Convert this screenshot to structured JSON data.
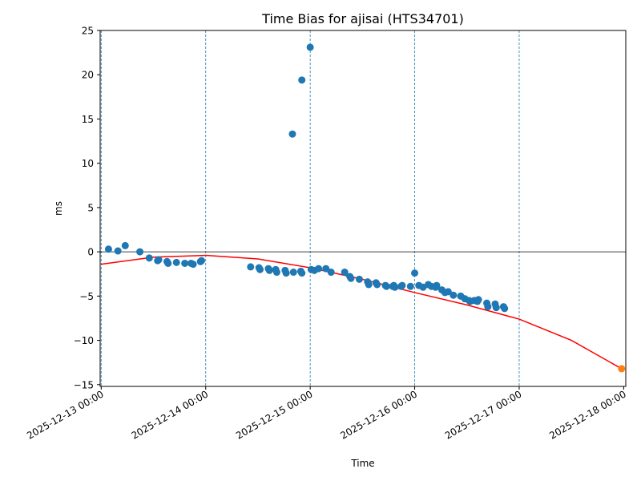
{
  "chart_data": {
    "type": "scatter",
    "title": "Time Bias for ajisai (HTS34701)",
    "xlabel": "Time",
    "ylabel": "ms",
    "xlim": [
      -0.01,
      5.02
    ],
    "ylim": [
      -15.2,
      25
    ],
    "y_ticks": [
      -15,
      -10,
      -5,
      0,
      5,
      10,
      15,
      20,
      25
    ],
    "y_tick_labels": [
      "−15",
      "−10",
      "−5",
      "0",
      "5",
      "10",
      "15",
      "20",
      "25"
    ],
    "x_ticks": [
      0,
      1,
      2,
      3,
      4,
      5
    ],
    "x_tick_labels": [
      "2025-12-13 00:00",
      "2025-12-14 00:00",
      "2025-12-15 00:00",
      "2025-12-16 00:00",
      "2025-12-17 00:00",
      "2025-12-18 00:00"
    ],
    "x_unit": "days since 2025-12-13 00:00",
    "vertical_gridlines_at": [
      0,
      1,
      2,
      3,
      4
    ],
    "horizontal_reference_line": 0,
    "colors": {
      "points": "#1f77b4",
      "fit": "#ff0000",
      "prediction": "#ff7f0e",
      "grid": "#1f77b4",
      "zero_line": "#000000"
    },
    "series": [
      {
        "name": "measurements",
        "kind": "scatter",
        "color": "#1f77b4",
        "x": [
          0.07,
          0.16,
          0.23,
          0.37,
          0.46,
          0.54,
          0.55,
          0.63,
          0.64,
          0.72,
          0.8,
          0.86,
          0.88,
          0.95,
          0.96,
          1.43,
          1.51,
          1.52,
          1.6,
          1.61,
          1.67,
          1.68,
          1.76,
          1.77,
          1.84,
          1.91,
          1.92,
          1.83,
          1.92,
          2.0,
          2.01,
          2.04,
          2.08,
          2.15,
          2.2,
          2.33,
          2.38,
          2.39,
          2.47,
          2.55,
          2.56,
          2.63,
          2.64,
          2.72,
          2.73,
          2.79,
          2.8,
          2.81,
          2.87,
          2.88,
          2.96,
          3.0,
          3.04,
          3.08,
          3.13,
          3.16,
          3.2,
          3.21,
          3.26,
          3.29,
          3.32,
          3.37,
          3.44,
          3.48,
          3.52,
          3.53,
          3.57,
          3.6,
          3.61,
          3.69,
          3.7,
          3.77,
          3.78,
          3.85,
          3.86
        ],
        "y": [
          0.3,
          0.1,
          0.7,
          0.0,
          -0.7,
          -1.0,
          -0.9,
          -1.1,
          -1.3,
          -1.2,
          -1.3,
          -1.3,
          -1.4,
          -1.1,
          -1.0,
          -1.7,
          -1.8,
          -2.0,
          -1.9,
          -2.1,
          -2.0,
          -2.3,
          -2.1,
          -2.4,
          -2.3,
          -2.2,
          -2.4,
          13.3,
          19.4,
          23.1,
          -2.0,
          -2.1,
          -1.9,
          -1.9,
          -2.3,
          -2.3,
          -2.8,
          -3.0,
          -3.1,
          -3.4,
          -3.7,
          -3.5,
          -3.7,
          -3.8,
          -3.9,
          -3.9,
          -3.8,
          -4.0,
          -3.9,
          -3.8,
          -3.9,
          -2.4,
          -3.8,
          -4.0,
          -3.7,
          -3.9,
          -4.0,
          -3.8,
          -4.3,
          -4.6,
          -4.5,
          -4.9,
          -5.0,
          -5.3,
          -5.5,
          -5.6,
          -5.5,
          -5.6,
          -5.4,
          -5.8,
          -6.2,
          -5.9,
          -6.3,
          -6.2,
          -6.4
        ]
      },
      {
        "name": "quadratic fit",
        "kind": "line",
        "color": "#ff0000",
        "x": [
          0,
          0.5,
          1,
          1.5,
          2,
          2.5,
          3,
          3.5,
          4,
          4.5,
          4.98
        ],
        "y": [
          -1.4,
          -0.6,
          -0.4,
          -0.8,
          -1.8,
          -3.1,
          -4.6,
          -6.0,
          -7.6,
          -10.0,
          -13.2
        ]
      },
      {
        "name": "prediction",
        "kind": "scatter",
        "color": "#ff7f0e",
        "x": [
          4.98
        ],
        "y": [
          -13.2
        ]
      }
    ]
  }
}
